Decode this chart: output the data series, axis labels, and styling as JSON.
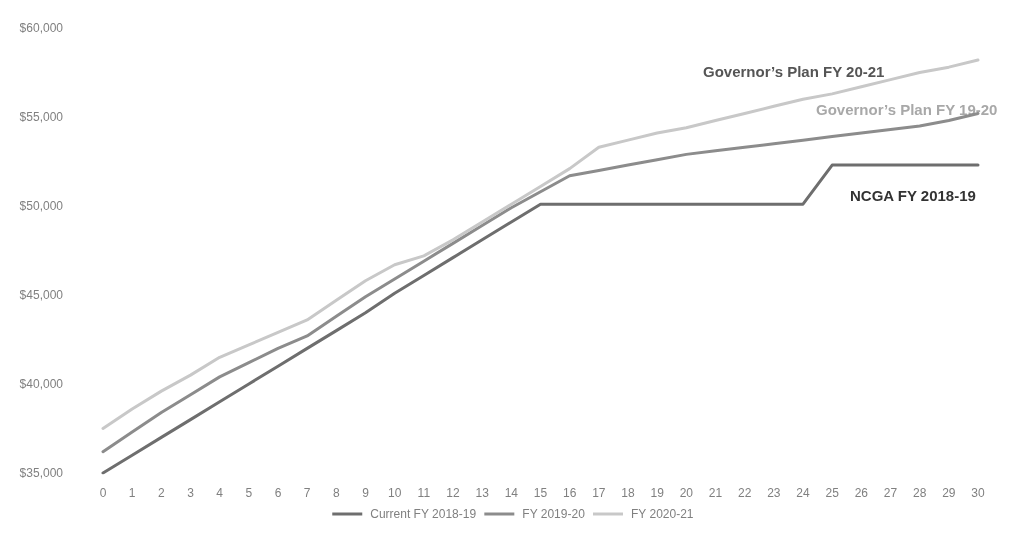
{
  "chart_data": {
    "type": "line",
    "x": [
      0,
      1,
      2,
      3,
      4,
      5,
      6,
      7,
      8,
      9,
      10,
      11,
      12,
      13,
      14,
      15,
      16,
      17,
      18,
      19,
      20,
      21,
      22,
      23,
      24,
      25,
      26,
      27,
      28,
      29,
      30
    ],
    "series": [
      {
        "name": "Current FY 2018-19",
        "color": "#6e6e6e",
        "values": [
          35000,
          36000,
          37000,
          38000,
          39000,
          40000,
          41000,
          42000,
          43000,
          44000,
          45100,
          46100,
          47100,
          48100,
          49100,
          50100,
          50100,
          50100,
          50100,
          50100,
          50100,
          50100,
          50100,
          50100,
          50100,
          52300,
          52300,
          52300,
          52300,
          52300,
          52300
        ]
      },
      {
        "name": "FY 2019-20",
        "color": "#8c8c8c",
        "values": [
          36200,
          37300,
          38400,
          39400,
          40400,
          41200,
          42000,
          42700,
          43800,
          44900,
          45900,
          46900,
          47900,
          48900,
          49900,
          50800,
          51700,
          52000,
          52300,
          52600,
          52900,
          53100,
          53300,
          53500,
          53700,
          53900,
          54100,
          54300,
          54500,
          54800,
          55200
        ]
      },
      {
        "name": "FY 2020-21",
        "color": "#c8c8c8",
        "values": [
          37500,
          38600,
          39600,
          40500,
          41500,
          42200,
          42900,
          43600,
          44700,
          45800,
          46700,
          47200,
          48100,
          49100,
          50100,
          51100,
          52100,
          53300,
          53700,
          54100,
          54400,
          54800,
          55200,
          55600,
          56000,
          56300,
          56700,
          57100,
          57500,
          57800,
          58200
        ]
      }
    ],
    "xlim": [
      0,
      30
    ],
    "xticks": [
      0,
      1,
      2,
      3,
      4,
      5,
      6,
      7,
      8,
      9,
      10,
      11,
      12,
      13,
      14,
      15,
      16,
      17,
      18,
      19,
      20,
      21,
      22,
      23,
      24,
      25,
      26,
      27,
      28,
      29,
      30
    ],
    "ylim": [
      35000,
      60000
    ],
    "yticks": [
      {
        "value": 35000,
        "label": "$35,000"
      },
      {
        "value": 40000,
        "label": "$40,000"
      },
      {
        "value": 45000,
        "label": "$45,000"
      },
      {
        "value": 50000,
        "label": "$50,000"
      },
      {
        "value": 55000,
        "label": "$55,000"
      },
      {
        "value": 60000,
        "label": "$60,000"
      }
    ],
    "annotations": [
      "Governor’s Plan FY 20-21",
      "Governor’s Plan FY 19-20",
      "NCGA FY 2018-19"
    ],
    "grid": false,
    "legend": "bottom",
    "marker": "none",
    "line_style": "solid"
  }
}
